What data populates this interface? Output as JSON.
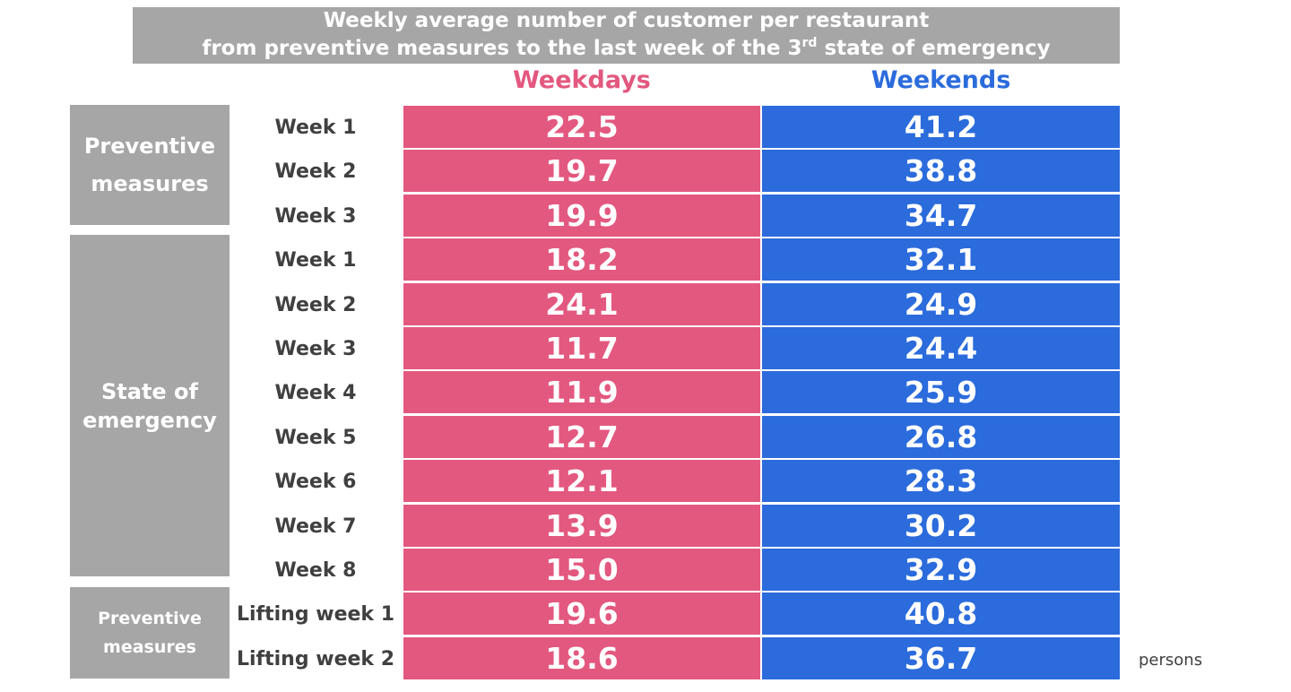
{
  "chart_data": {
    "type": "table",
    "title_lines": [
      "Weekly average number of customer per restaurant",
      "from preventive measures to the last week of the 3",
      "rd",
      " state of emergency"
    ],
    "series": [
      {
        "name": "Weekdays",
        "color": "#e3587f",
        "values": [
          22.5,
          19.7,
          19.9,
          18.2,
          24.1,
          11.7,
          11.9,
          12.7,
          12.1,
          13.9,
          15.0,
          19.6,
          18.6
        ]
      },
      {
        "name": "Weekends",
        "color": "#2b6bdc",
        "values": [
          41.2,
          38.8,
          34.7,
          32.1,
          24.9,
          24.4,
          25.9,
          26.8,
          28.3,
          30.2,
          32.9,
          40.8,
          36.7
        ]
      }
    ],
    "rows": [
      "Week 1",
      "Week 2",
      "Week 3",
      "Week 1",
      "Week 2",
      "Week 3",
      "Week 4",
      "Week 5",
      "Week 6",
      "Week 7",
      "Week 8",
      "Lifting week 1",
      "Lifting week 2"
    ],
    "groups": [
      {
        "label_lines": [
          "Preventive",
          "measures"
        ],
        "rows": [
          0,
          1,
          2
        ]
      },
      {
        "label_lines": [
          "State of",
          "emergency"
        ],
        "rows": [
          3,
          4,
          5,
          6,
          7,
          8,
          9,
          10
        ]
      },
      {
        "label_lines": [
          "Preventive",
          "measures"
        ],
        "rows": [
          11,
          12
        ]
      }
    ],
    "unit": "persons",
    "display_values": {
      "weekdays": [
        "22.5",
        "19.7",
        "19.9",
        "18.2",
        "24.1",
        "11.7",
        "11.9",
        "12.7",
        "12.1",
        "13.9",
        "15.0",
        "19.6",
        "18.6"
      ],
      "weekends": [
        "41.2",
        "38.8",
        "34.7",
        "32.1",
        "24.9",
        "24.4",
        "25.9",
        "26.8",
        "28.3",
        "30.2",
        "32.9",
        "40.8",
        "36.7"
      ]
    }
  }
}
